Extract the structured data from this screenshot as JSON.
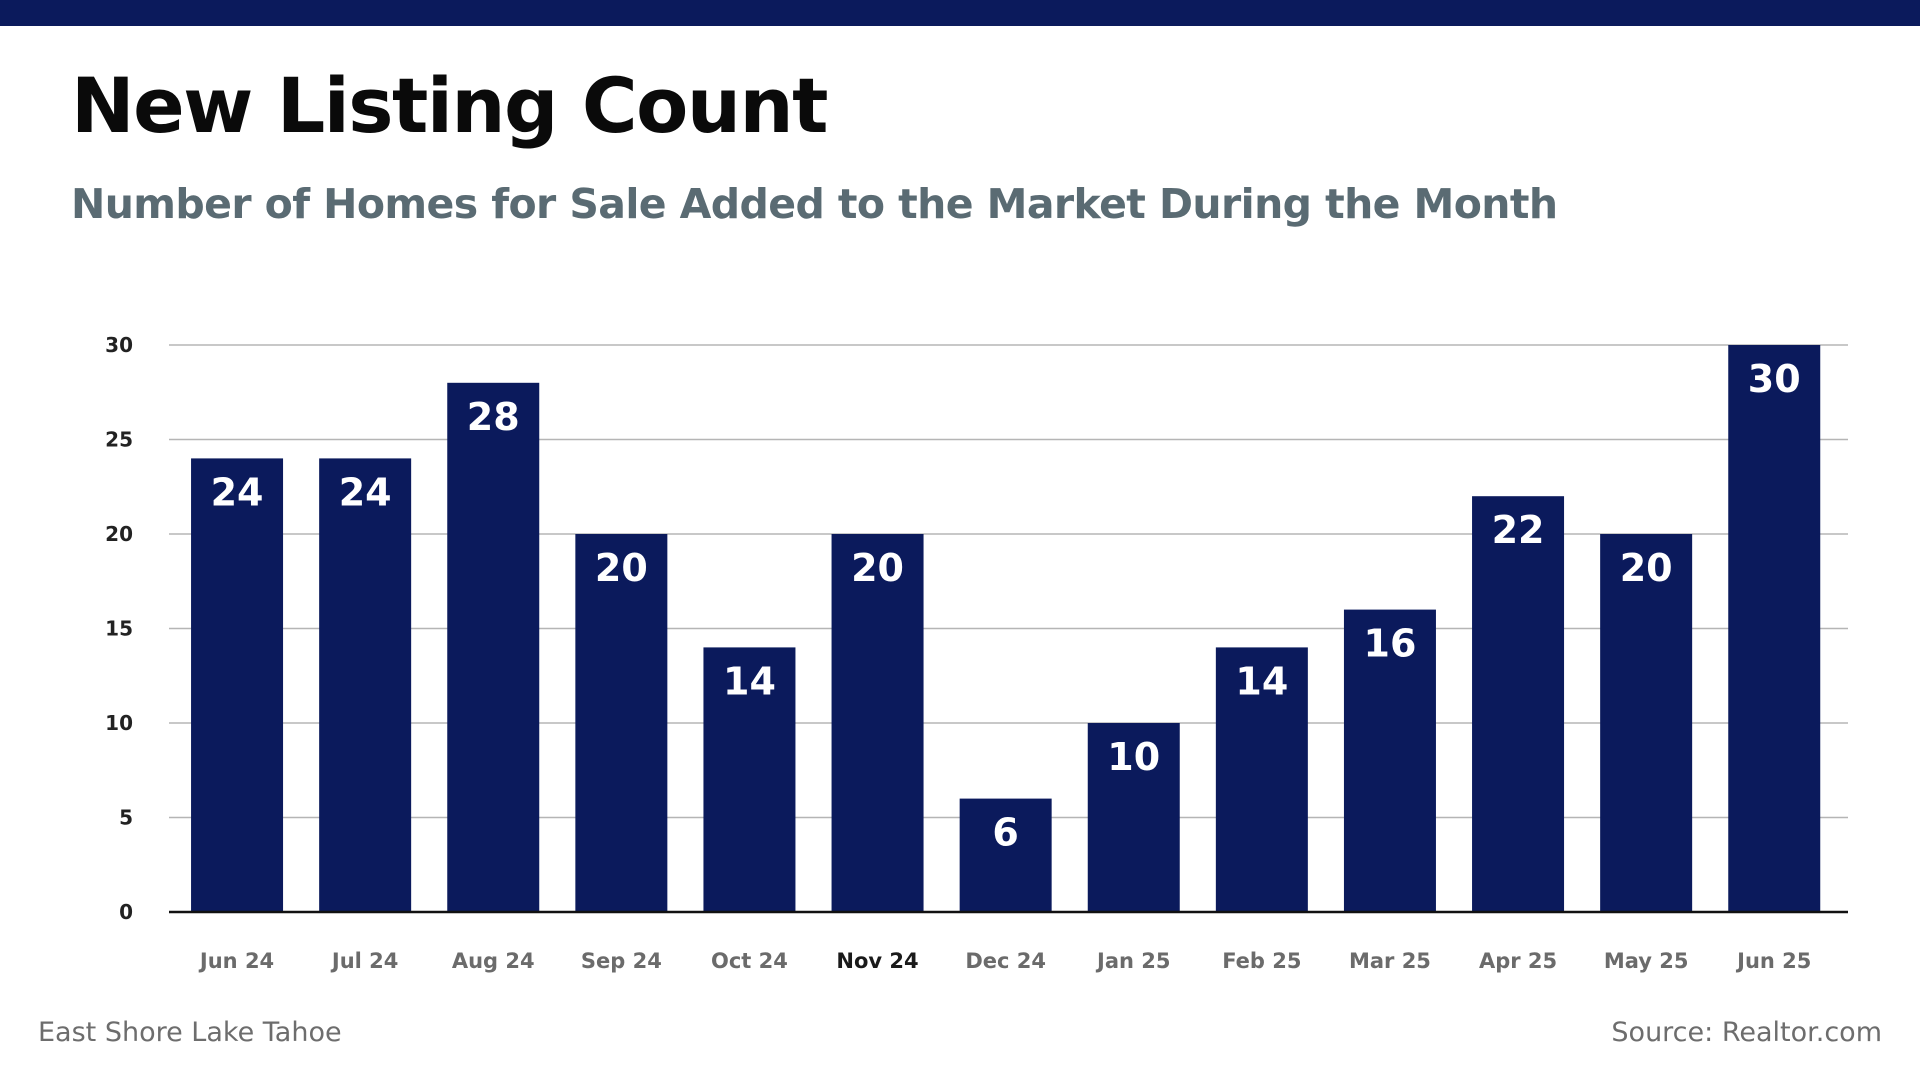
{
  "header": {
    "title": "New Listing Count",
    "subtitle": "Number of Homes for Sale Added to the Market During the Month"
  },
  "footer": {
    "location": "East Shore Lake Tahoe",
    "source": "Source: Realtor.com"
  },
  "colors": {
    "bar": "#0b1a5c",
    "top_bar": "#0b1a5c",
    "title": "#0a0a0a",
    "subtitle": "#5a6b73",
    "grid": "#b5b5b5",
    "tick_label": "#6b6b6b",
    "highlight_tick_label": "#1a1a1a",
    "data_label": "#ffffff"
  },
  "chart_data": {
    "type": "bar",
    "categories": [
      "Jun 24",
      "Jul 24",
      "Aug 24",
      "Sep 24",
      "Oct 24",
      "Nov 24",
      "Dec 24",
      "Jan 25",
      "Feb 25",
      "Mar 25",
      "Apr 25",
      "May 25",
      "Jun 25"
    ],
    "values": [
      24,
      24,
      28,
      20,
      14,
      20,
      6,
      10,
      14,
      16,
      22,
      20,
      30
    ],
    "highlighted_category": "Nov 24",
    "yticks": [
      0,
      5,
      10,
      15,
      20,
      25,
      30
    ],
    "ylim": [
      0,
      30
    ],
    "grid": true,
    "data_labels": true,
    "legend": false
  }
}
